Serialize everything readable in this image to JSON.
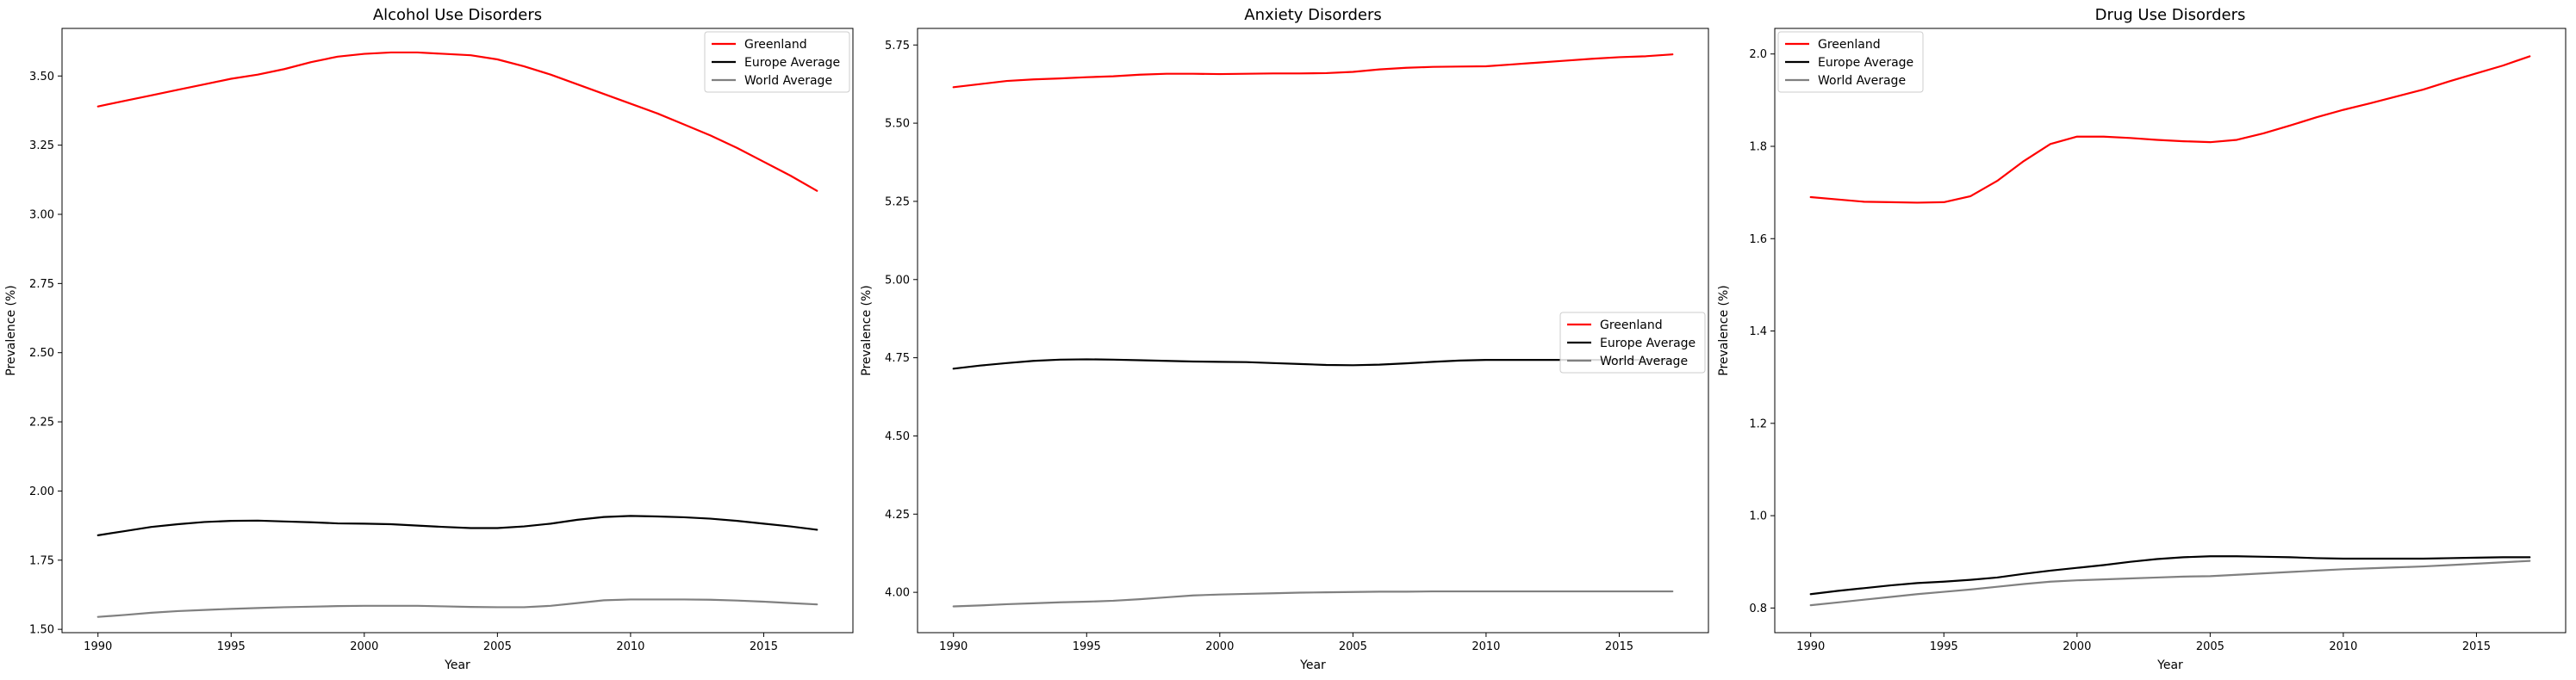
{
  "chart_data": [
    {
      "type": "line",
      "title": "Alcohol Use Disorders",
      "xlabel": "Year",
      "ylabel": "Prevalence (%)",
      "xlim": [
        1988.65,
        2018.35
      ],
      "ylim": [
        1.488,
        3.672
      ],
      "xticks": [
        "1990",
        "1995",
        "2000",
        "2005",
        "2010",
        "2015"
      ],
      "yticks": [
        "1.50",
        "1.75",
        "2.00",
        "2.25",
        "2.50",
        "2.75",
        "3.00",
        "3.25",
        "3.50"
      ],
      "legend": "top-right",
      "x": [
        1990,
        1991,
        1992,
        1993,
        1994,
        1995,
        1996,
        1997,
        1998,
        1999,
        2000,
        2001,
        2002,
        2003,
        2004,
        2005,
        2006,
        2007,
        2008,
        2009,
        2010,
        2011,
        2012,
        2013,
        2014,
        2015,
        2016,
        2017
      ],
      "series": [
        {
          "name": "Greenland",
          "color": "#ff0000",
          "values": [
            3.39,
            3.41,
            3.43,
            3.45,
            3.47,
            3.49,
            3.505,
            3.525,
            3.55,
            3.57,
            3.58,
            3.585,
            3.585,
            3.58,
            3.575,
            3.56,
            3.535,
            3.505,
            3.47,
            3.435,
            3.4,
            3.365,
            3.325,
            3.285,
            3.24,
            3.19,
            3.14,
            3.085
          ]
        },
        {
          "name": "Europe Average",
          "color": "#000000",
          "values": [
            1.84,
            1.855,
            1.87,
            1.88,
            1.888,
            1.892,
            1.893,
            1.89,
            1.887,
            1.883,
            1.882,
            1.88,
            1.875,
            1.87,
            1.866,
            1.866,
            1.872,
            1.882,
            1.896,
            1.906,
            1.91,
            1.908,
            1.905,
            1.9,
            1.892,
            1.882,
            1.872,
            1.86
          ]
        },
        {
          "name": "World Average",
          "color": "#808080",
          "values": [
            1.545,
            1.552,
            1.56,
            1.566,
            1.57,
            1.574,
            1.577,
            1.58,
            1.582,
            1.584,
            1.585,
            1.585,
            1.585,
            1.583,
            1.581,
            1.58,
            1.58,
            1.585,
            1.595,
            1.605,
            1.608,
            1.608,
            1.608,
            1.607,
            1.604,
            1.6,
            1.595,
            1.59
          ]
        }
      ]
    },
    {
      "type": "line",
      "title": "Anxiety Disorders",
      "xlabel": "Year",
      "ylabel": "Prevalence (%)",
      "xlim": [
        1988.65,
        2018.35
      ],
      "ylim": [
        3.871,
        5.803
      ],
      "xticks": [
        "1990",
        "1995",
        "2000",
        "2005",
        "2010",
        "2015"
      ],
      "yticks": [
        "4.00",
        "4.25",
        "4.50",
        "4.75",
        "5.00",
        "5.25",
        "5.50",
        "5.75"
      ],
      "legend": "center-right",
      "x": [
        1990,
        1991,
        1992,
        1993,
        1994,
        1995,
        1996,
        1997,
        1998,
        1999,
        2000,
        2001,
        2002,
        2003,
        2004,
        2005,
        2006,
        2007,
        2008,
        2009,
        2010,
        2011,
        2012,
        2013,
        2014,
        2015,
        2016,
        2017
      ],
      "series": [
        {
          "name": "Greenland",
          "color": "#ff0000",
          "values": [
            5.615,
            5.625,
            5.635,
            5.64,
            5.643,
            5.647,
            5.65,
            5.655,
            5.658,
            5.658,
            5.657,
            5.658,
            5.659,
            5.659,
            5.66,
            5.664,
            5.672,
            5.677,
            5.68,
            5.681,
            5.682,
            5.688,
            5.694,
            5.7,
            5.706,
            5.711,
            5.714,
            5.72
          ]
        },
        {
          "name": "Europe Average",
          "color": "#000000",
          "values": [
            4.715,
            4.725,
            4.733,
            4.74,
            4.744,
            4.745,
            4.744,
            4.742,
            4.74,
            4.738,
            4.737,
            4.736,
            4.733,
            4.73,
            4.727,
            4.726,
            4.728,
            4.732,
            4.737,
            4.741,
            4.743,
            4.743,
            4.743,
            4.743,
            4.743,
            4.743,
            4.743,
            4.743
          ]
        },
        {
          "name": "World Average",
          "color": "#808080",
          "values": [
            3.955,
            3.958,
            3.962,
            3.965,
            3.968,
            3.97,
            3.973,
            3.978,
            3.984,
            3.99,
            3.993,
            3.995,
            3.997,
            3.999,
            4.0,
            4.001,
            4.002,
            4.002,
            4.003,
            4.003,
            4.003,
            4.003,
            4.003,
            4.003,
            4.003,
            4.003,
            4.003,
            4.003
          ]
        }
      ]
    },
    {
      "type": "line",
      "title": "Drug Use Disorders",
      "xlabel": "Year",
      "ylabel": "Prevalence (%)",
      "xlim": [
        1988.65,
        2018.35
      ],
      "ylim": [
        0.7466,
        2.0554
      ],
      "xticks": [
        "1990",
        "1995",
        "2000",
        "2005",
        "2010",
        "2015"
      ],
      "yticks": [
        "0.8",
        "1.0",
        "1.2",
        "1.4",
        "1.6",
        "1.8",
        "2.0"
      ],
      "legend": "top-left",
      "x": [
        1990,
        1991,
        1992,
        1993,
        1994,
        1995,
        1996,
        1997,
        1998,
        1999,
        2000,
        2001,
        2002,
        2003,
        2004,
        2005,
        2006,
        2007,
        2008,
        2009,
        2010,
        2011,
        2012,
        2013,
        2014,
        2015,
        2016,
        2017
      ],
      "series": [
        {
          "name": "Greenland",
          "color": "#ff0000",
          "values": [
            1.69,
            1.685,
            1.68,
            1.679,
            1.678,
            1.679,
            1.692,
            1.725,
            1.768,
            1.805,
            1.821,
            1.821,
            1.818,
            1.814,
            1.811,
            1.809,
            1.814,
            1.828,
            1.845,
            1.863,
            1.879,
            1.893,
            1.908,
            1.923,
            1.941,
            1.958,
            1.975,
            1.995
          ]
        },
        {
          "name": "Europe Average",
          "color": "#000000",
          "values": [
            0.83,
            0.837,
            0.843,
            0.849,
            0.854,
            0.857,
            0.861,
            0.866,
            0.874,
            0.881,
            0.887,
            0.893,
            0.9,
            0.906,
            0.91,
            0.912,
            0.912,
            0.911,
            0.91,
            0.908,
            0.907,
            0.907,
            0.907,
            0.907,
            0.908,
            0.909,
            0.91,
            0.91
          ]
        },
        {
          "name": "World Average",
          "color": "#808080",
          "values": [
            0.806,
            0.812,
            0.818,
            0.824,
            0.83,
            0.835,
            0.84,
            0.846,
            0.852,
            0.857,
            0.86,
            0.862,
            0.864,
            0.866,
            0.868,
            0.869,
            0.872,
            0.875,
            0.878,
            0.881,
            0.884,
            0.886,
            0.888,
            0.89,
            0.893,
            0.896,
            0.899,
            0.902
          ]
        }
      ]
    }
  ]
}
